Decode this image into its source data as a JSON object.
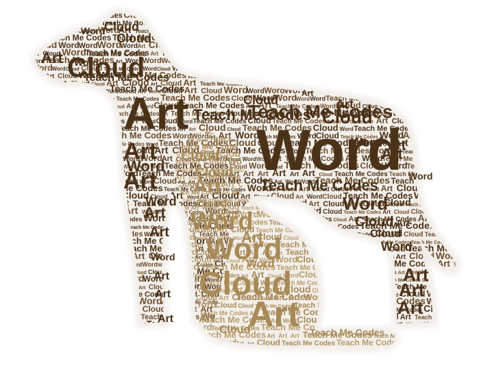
{
  "image": {
    "words": [
      "Word",
      "Cloud",
      "Art",
      "Teach Me Codes"
    ],
    "shape": "silhouette of a large dog standing with a cat sitting in front of it",
    "colors": {
      "background": "#ffffff",
      "silhouette_glow": "#f2eee9",
      "dog_words": "#4a3219",
      "dog_words_light": "#6b4e2e",
      "cat_words": "#a88a58",
      "cat_words_light": "#b89d6d"
    }
  }
}
